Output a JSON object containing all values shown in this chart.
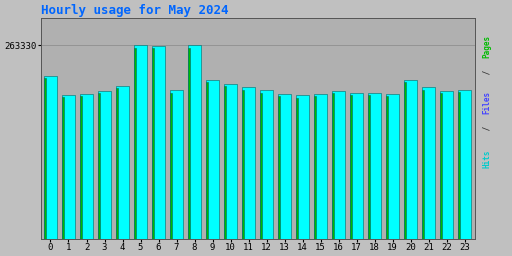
{
  "title": "Hourly usage for May 2024",
  "title_color": "#0066ff",
  "title_fontsize": 9,
  "background_color": "#c0c0c0",
  "plot_bg_color": "#b0b0b0",
  "hours": [
    0,
    1,
    2,
    3,
    4,
    5,
    6,
    7,
    8,
    9,
    10,
    11,
    12,
    13,
    14,
    15,
    16,
    17,
    18,
    19,
    20,
    21,
    22,
    23
  ],
  "hits_values": [
    222000,
    196000,
    197000,
    201000,
    208000,
    263330,
    262000,
    202000,
    263330,
    216000,
    211000,
    206000,
    202000,
    197000,
    195000,
    197000,
    201000,
    199000,
    198000,
    197000,
    216000,
    206000,
    201000,
    203000
  ],
  "pages_values": [
    219000,
    193000,
    194000,
    198000,
    205000,
    260000,
    259000,
    199000,
    260000,
    213000,
    208000,
    203000,
    199000,
    194000,
    192000,
    194000,
    198000,
    196000,
    195000,
    194000,
    213000,
    203000,
    198000,
    200000
  ],
  "bar_color_hits": "#00ffff",
  "bar_color_pages": "#00bb00",
  "bar_edge_color": "#006666",
  "ylim_max": 300000,
  "ytick_label": "263330",
  "ytick_value": 263330,
  "right_label_pages_color": "#00bb00",
  "right_label_files_color": "#4444ff",
  "right_label_hits_color": "#00cccc"
}
